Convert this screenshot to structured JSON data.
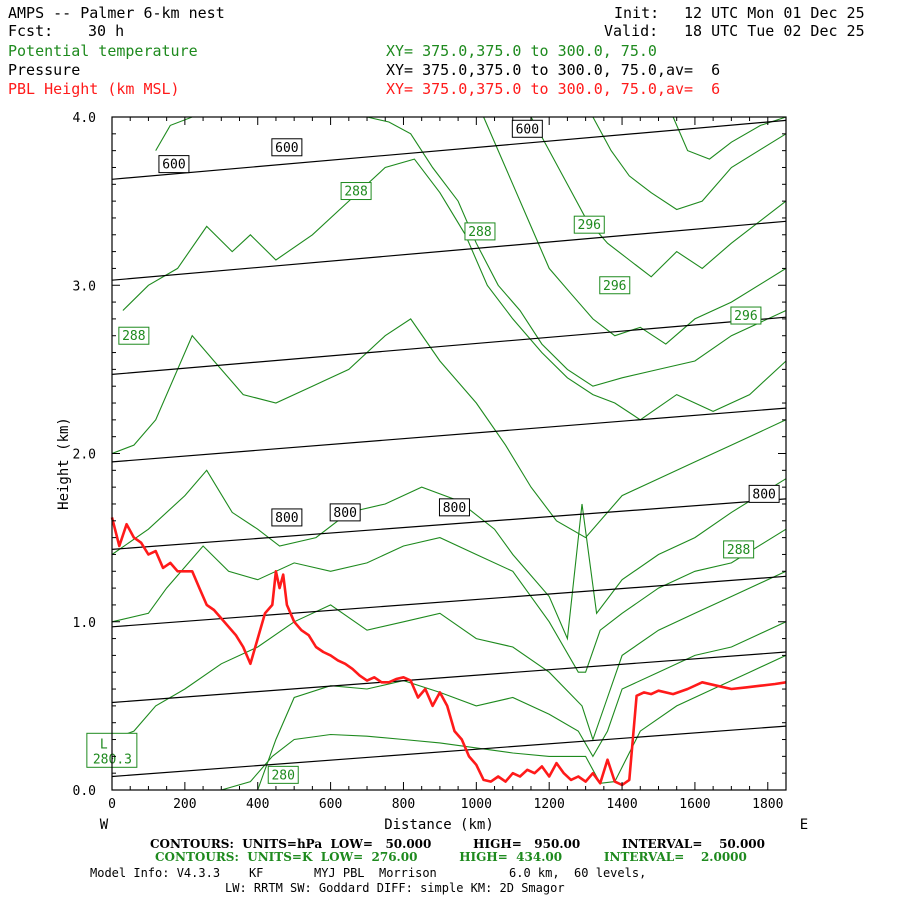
{
  "header": {
    "title": "AMPS -- Palmer 6-km nest",
    "fcst_label": "Fcst:",
    "fcst_value": "30 h",
    "init_label": "Init:",
    "init_value": "12 UTC Mon 01 Dec 25",
    "valid_label": "Valid:",
    "valid_value": "18 UTC Tue 02 Dec 25",
    "field1_name": "Potential temperature",
    "field1_xy": "XY= 375.0,375.0 to 300.0, 75.0",
    "field2_name": "Pressure",
    "field2_xy": "XY= 375.0,375.0 to 300.0, 75.0,av=  6",
    "field3_name": "PBL Height (km MSL)",
    "field3_xy": "XY= 375.0,375.0 to 300.0, 75.0,av=  6"
  },
  "colors": {
    "theta": "#1e8a1e",
    "pressure": "#000000",
    "pbl": "#ff1a1a"
  },
  "chart_data": {
    "type": "line",
    "xlabel": "Distance (km)",
    "ylabel": "Height (km)",
    "xlim": [
      0,
      1850
    ],
    "ylim": [
      0,
      4.0
    ],
    "x_ticks": [
      0,
      200,
      400,
      600,
      800,
      1000,
      1200,
      1400,
      1600,
      1800
    ],
    "x_tick_labels": [
      "0",
      "200",
      "400",
      "600",
      "800",
      "1000",
      "1200",
      "1400",
      "1600",
      "1800"
    ],
    "y_ticks": [
      0,
      1,
      2,
      3,
      4
    ],
    "y_tick_labels": [
      "0.0",
      "1.0",
      "2.0",
      "3.0",
      "4.0"
    ],
    "x_left_label": "W",
    "x_right_label": "E",
    "pressure_contours": [
      {
        "level": 950,
        "x": [
          0,
          1850
        ],
        "y": [
          0.08,
          0.38
        ]
      },
      {
        "level": 900,
        "x": [
          0,
          1850
        ],
        "y": [
          0.52,
          0.82
        ]
      },
      {
        "level": 850,
        "x": [
          0,
          1850
        ],
        "y": [
          0.97,
          1.27
        ]
      },
      {
        "level": 800,
        "x": [
          0,
          1850
        ],
        "y": [
          1.43,
          1.73
        ]
      },
      {
        "level": 750,
        "x": [
          0,
          1850
        ],
        "y": [
          1.95,
          2.27
        ]
      },
      {
        "level": 700,
        "x": [
          0,
          1850
        ],
        "y": [
          2.47,
          2.81
        ]
      },
      {
        "level": 650,
        "x": [
          0,
          1850
        ],
        "y": [
          3.03,
          3.38
        ]
      },
      {
        "level": 600,
        "x": [
          0,
          1850
        ],
        "y": [
          3.63,
          3.98
        ]
      }
    ],
    "pressure_labels": [
      {
        "text": "600",
        "x": 170,
        "y": 3.72
      },
      {
        "text": "600",
        "x": 480,
        "y": 3.82
      },
      {
        "text": "600",
        "x": 1140,
        "y": 3.93
      },
      {
        "text": "800",
        "x": 480,
        "y": 1.62
      },
      {
        "text": "800",
        "x": 640,
        "y": 1.65
      },
      {
        "text": "800",
        "x": 940,
        "y": 1.68
      },
      {
        "text": "800",
        "x": 1790,
        "y": 1.76
      }
    ],
    "theta_contours": [
      {
        "x": [
          300,
          380,
          440,
          500,
          600,
          700,
          800,
          900,
          1000,
          1100,
          1200,
          1300,
          1340,
          1380,
          1450,
          1550,
          1650,
          1750,
          1850
        ],
        "y": [
          0.0,
          0.05,
          0.2,
          0.3,
          0.33,
          0.32,
          0.3,
          0.28,
          0.25,
          0.22,
          0.2,
          0.2,
          0.04,
          0.05,
          0.35,
          0.5,
          0.6,
          0.7,
          0.8
        ]
      },
      {
        "x": [
          400,
          450,
          500,
          600,
          700,
          800,
          900,
          1000,
          1100,
          1200,
          1280,
          1320,
          1360,
          1400,
          1500,
          1600,
          1700,
          1850
        ],
        "y": [
          0.0,
          0.3,
          0.55,
          0.62,
          0.6,
          0.65,
          0.58,
          0.5,
          0.55,
          0.45,
          0.35,
          0.2,
          0.35,
          0.6,
          0.7,
          0.8,
          0.85,
          1.0
        ]
      },
      {
        "x": [
          0,
          60,
          120,
          200,
          300,
          400,
          500,
          600,
          700,
          800,
          900,
          1000,
          1100,
          1200,
          1290,
          1320,
          1360,
          1400,
          1500,
          1600,
          1700,
          1850
        ],
        "y": [
          0.3,
          0.35,
          0.5,
          0.6,
          0.75,
          0.85,
          1.0,
          1.1,
          0.95,
          1.0,
          1.05,
          0.9,
          0.85,
          0.7,
          0.5,
          0.3,
          0.55,
          0.8,
          0.95,
          1.05,
          1.15,
          1.3
        ]
      },
      {
        "x": [
          0,
          100,
          150,
          250,
          320,
          400,
          500,
          600,
          700,
          800,
          900,
          1000,
          1100,
          1200,
          1280,
          1300,
          1340,
          1400,
          1500,
          1600,
          1700,
          1850
        ],
        "y": [
          1.0,
          1.05,
          1.2,
          1.45,
          1.3,
          1.25,
          1.35,
          1.3,
          1.35,
          1.45,
          1.5,
          1.4,
          1.3,
          1.0,
          0.7,
          0.7,
          0.95,
          1.05,
          1.2,
          1.3,
          1.35,
          1.55
        ]
      },
      {
        "x": [
          0,
          100,
          200,
          260,
          330,
          400,
          460,
          560,
          650,
          750,
          850,
          950,
          1050,
          1100,
          1200,
          1250,
          1290,
          1330,
          1400,
          1500,
          1600,
          1700,
          1850
        ],
        "y": [
          1.4,
          1.55,
          1.75,
          1.9,
          1.65,
          1.55,
          1.45,
          1.5,
          1.65,
          1.7,
          1.8,
          1.72,
          1.55,
          1.4,
          1.15,
          0.9,
          1.7,
          1.05,
          1.25,
          1.4,
          1.5,
          1.65,
          1.85
        ]
      },
      {
        "x": [
          0,
          60,
          120,
          220,
          280,
          360,
          450,
          550,
          650,
          750,
          820,
          900,
          1000,
          1080,
          1150,
          1220,
          1300,
          1360,
          1400,
          1500,
          1600,
          1700,
          1850
        ],
        "y": [
          2.0,
          2.05,
          2.2,
          2.7,
          2.55,
          2.35,
          2.3,
          2.4,
          2.5,
          2.7,
          2.8,
          2.55,
          2.3,
          2.05,
          1.8,
          1.6,
          1.5,
          1.65,
          1.75,
          1.85,
          1.95,
          2.05,
          2.2
        ]
      },
      {
        "x": [
          30,
          100,
          180,
          260,
          330,
          380,
          450,
          550,
          650,
          750,
          830,
          900,
          970,
          1030,
          1100,
          1180,
          1250,
          1320,
          1380,
          1450,
          1550,
          1650,
          1750,
          1850
        ],
        "y": [
          2.85,
          3.0,
          3.1,
          3.35,
          3.2,
          3.3,
          3.15,
          3.3,
          3.5,
          3.7,
          3.75,
          3.55,
          3.3,
          3.0,
          2.8,
          2.6,
          2.45,
          2.35,
          2.3,
          2.2,
          2.35,
          2.25,
          2.35,
          2.55
        ]
      },
      {
        "x": [
          120,
          160,
          220,
          300,
          400,
          500,
          600,
          700,
          760,
          820,
          880,
          950,
          1000,
          1060,
          1120,
          1180,
          1250,
          1320,
          1400,
          1500,
          1600,
          1700,
          1850
        ],
        "y": [
          3.8,
          3.95,
          4.0,
          4.0,
          4.0,
          4.0,
          4.0,
          4.0,
          3.97,
          3.9,
          3.7,
          3.5,
          3.25,
          3.0,
          2.85,
          2.65,
          2.5,
          2.4,
          2.45,
          2.5,
          2.55,
          2.7,
          2.85
        ]
      },
      {
        "x": [
          1020,
          1060,
          1100,
          1150,
          1200,
          1260,
          1320,
          1380,
          1450,
          1520,
          1600,
          1700,
          1850
        ],
        "y": [
          4.0,
          3.8,
          3.6,
          3.35,
          3.1,
          2.95,
          2.8,
          2.7,
          2.75,
          2.65,
          2.8,
          2.9,
          3.1
        ]
      },
      {
        "x": [
          1150,
          1200,
          1250,
          1300,
          1360,
          1420,
          1480,
          1550,
          1620,
          1700,
          1850
        ],
        "y": [
          4.0,
          3.8,
          3.6,
          3.4,
          3.25,
          3.15,
          3.05,
          3.2,
          3.1,
          3.25,
          3.5
        ]
      },
      {
        "x": [
          1320,
          1370,
          1420,
          1480,
          1550,
          1620,
          1700,
          1850
        ],
        "y": [
          4.0,
          3.8,
          3.65,
          3.55,
          3.45,
          3.5,
          3.7,
          3.9
        ]
      },
      {
        "x": [
          1540,
          1580,
          1640,
          1700,
          1780,
          1850
        ],
        "y": [
          4.0,
          3.8,
          3.75,
          3.85,
          3.95,
          4.0
        ]
      }
    ],
    "theta_labels": [
      {
        "text": "288",
        "x": 670,
        "y": 3.56
      },
      {
        "text": "288",
        "x": 1010,
        "y": 3.32
      },
      {
        "text": "288",
        "x": 60,
        "y": 2.7
      },
      {
        "text": "296",
        "x": 1310,
        "y": 3.36
      },
      {
        "text": "296",
        "x": 1380,
        "y": 3.0
      },
      {
        "text": "296",
        "x": 1740,
        "y": 2.82
      },
      {
        "text": "288",
        "x": 1720,
        "y": 1.43
      },
      {
        "text": "280",
        "x": 470,
        "y": 0.09
      }
    ],
    "low_marker": {
      "letter": "L",
      "value": "280.3",
      "x": 60,
      "y": 0.23
    },
    "series": [
      {
        "name": "PBL Height (km MSL)",
        "x": [
          0,
          20,
          40,
          60,
          80,
          100,
          120,
          140,
          160,
          180,
          200,
          220,
          240,
          260,
          280,
          300,
          320,
          340,
          360,
          380,
          400,
          420,
          440,
          450,
          460,
          470,
          480,
          500,
          520,
          540,
          560,
          580,
          600,
          620,
          640,
          660,
          680,
          700,
          720,
          740,
          760,
          780,
          800,
          820,
          840,
          860,
          880,
          900,
          920,
          940,
          960,
          980,
          1000,
          1020,
          1040,
          1060,
          1080,
          1100,
          1120,
          1140,
          1160,
          1180,
          1200,
          1220,
          1240,
          1260,
          1280,
          1300,
          1320,
          1340,
          1360,
          1380,
          1400,
          1420,
          1440,
          1460,
          1480,
          1500,
          1540,
          1580,
          1620,
          1660,
          1700,
          1740,
          1780,
          1820,
          1850
        ],
        "y": [
          1.62,
          1.45,
          1.58,
          1.5,
          1.47,
          1.4,
          1.42,
          1.32,
          1.35,
          1.3,
          1.3,
          1.3,
          1.2,
          1.1,
          1.07,
          1.02,
          0.97,
          0.92,
          0.85,
          0.75,
          0.9,
          1.05,
          1.1,
          1.3,
          1.2,
          1.28,
          1.1,
          1.0,
          0.95,
          0.92,
          0.85,
          0.82,
          0.8,
          0.77,
          0.75,
          0.72,
          0.68,
          0.65,
          0.67,
          0.64,
          0.64,
          0.66,
          0.67,
          0.65,
          0.55,
          0.6,
          0.5,
          0.58,
          0.5,
          0.35,
          0.3,
          0.2,
          0.15,
          0.06,
          0.05,
          0.08,
          0.05,
          0.1,
          0.08,
          0.12,
          0.1,
          0.14,
          0.08,
          0.16,
          0.1,
          0.06,
          0.08,
          0.05,
          0.1,
          0.04,
          0.18,
          0.05,
          0.03,
          0.06,
          0.56,
          0.58,
          0.57,
          0.59,
          0.57,
          0.6,
          0.64,
          0.62,
          0.6,
          0.61,
          0.62,
          0.63,
          0.64
        ]
      }
    ]
  },
  "footer": {
    "line1": "CONTOURS:  UNITS=hPa  LOW=   50.000          HIGH=   950.00          INTERVAL=    50.000",
    "line2": "CONTOURS:  UNITS=K  LOW=  276.00          HIGH=  434.00          INTERVAL=    2.0000",
    "line3": "Model Info: V4.3.3    KF       MYJ PBL  Morrison          6.0 km,  60 levels,",
    "line4": "LW: RRTM SW: Goddard DIFF: simple KM: 2D Smagor"
  }
}
